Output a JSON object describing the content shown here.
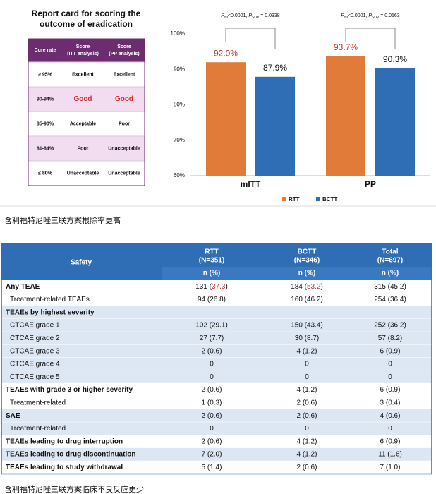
{
  "report_card": {
    "title": [
      "Report card for scoring the",
      "outcome of eradication"
    ],
    "headers": [
      [
        "Cure rate"
      ],
      [
        "Score",
        "(ITT analysis)"
      ],
      [
        "Score",
        "(PP analysis)"
      ]
    ],
    "rows": [
      [
        "≥ 95%",
        "Excellent",
        "Excellent"
      ],
      [
        "90-94%",
        "Good",
        "Good"
      ],
      [
        "85-90%",
        "Acceptable",
        "Poor"
      ],
      [
        "81-84%",
        "Poor",
        "Unacceptable"
      ],
      [
        "≤ 80%",
        "Unacceptable",
        "Unacceptable"
      ]
    ]
  },
  "chart_data": {
    "type": "bar",
    "categories": [
      "mITT",
      "PP"
    ],
    "series": [
      {
        "name": "RTT",
        "color": "#e07b39",
        "values": [
          92.0,
          93.7
        ],
        "value_labels": [
          "92.0%",
          "93.7%"
        ]
      },
      {
        "name": "BCTT",
        "color": "#2f6db5",
        "values": [
          87.9,
          90.3
        ],
        "value_labels": [
          "87.9%",
          "90.3%"
        ]
      }
    ],
    "ylim": [
      60,
      100
    ],
    "yticks": [
      {
        "value": 60,
        "label": "60%"
      },
      {
        "value": 70,
        "label": "70%"
      },
      {
        "value": 80,
        "label": "80%"
      },
      {
        "value": 90,
        "label": "90%"
      },
      {
        "value": 100,
        "label": "100%"
      }
    ],
    "annotations": [
      [
        "P",
        "NI",
        "<0.0001, ",
        "P",
        "SUP",
        " = 0.0338"
      ],
      [
        "P",
        "NI",
        "<0.0001, ",
        "P",
        "SUP",
        " = 0.0563"
      ]
    ],
    "legend": "bottom"
  },
  "caption_1": "含利福特尼唑三联方案根除率更高",
  "safety_table": {
    "headers": [
      [
        "Safety"
      ],
      [
        "RTT",
        "(N=351)",
        "n (%)"
      ],
      [
        "BCTT",
        "(N=346)",
        "n (%)"
      ],
      [
        "Total",
        "(N=697)",
        "n (%)"
      ]
    ],
    "rows": [
      [
        "Any TEAE",
        [
          "131 (",
          "37.3",
          ")"
        ],
        [
          "184 (",
          "53.2",
          ")"
        ],
        "315 (45.2)"
      ],
      [
        "Treatment-related TEAEs",
        "94 (26.8)",
        "160 (46.2)",
        "254 (36.4)"
      ],
      [
        "TEAEs by highest severity"
      ],
      [
        "CTCAE grade 1",
        "102 (29.1)",
        "150 (43.4)",
        "252 (36.2)"
      ],
      [
        "CTCAE grade 2",
        "27 (7.7)",
        "30 (8.7)",
        "57 (8.2)"
      ],
      [
        "CTCAE grade 3",
        "2 (0.6)",
        "4 (1.2)",
        "6 (0.9)"
      ],
      [
        "CTCAE grade 4",
        "0",
        "0",
        "0"
      ],
      [
        "CTCAE grade 5",
        "0",
        "0",
        "0"
      ],
      [
        "TEAEs with grade 3 or higher severity",
        "2 (0.6)",
        "4 (1.2)",
        "6 (0.9)"
      ],
      [
        "Treatment-related",
        "1 (0.3)",
        "2 (0.6)",
        "3 (0.4)"
      ],
      [
        "SAE",
        "2 (0.6)",
        "2 (0.6)",
        "4 (0.6)"
      ],
      [
        "Treatment-related",
        "0",
        "0",
        "0"
      ],
      [
        "TEAEs leading to drug interruption",
        "2 (0.6)",
        "4 (1.2)",
        "6 (0.9)"
      ],
      [
        "TEAEs leading to drug discontinuation",
        "7 (2.0)",
        "4 (1.2)",
        "11 (1.6)"
      ],
      [
        "TEAEs leading to study withdrawal",
        "5 (1.4)",
        "2 (0.6)",
        "7 (1.0)"
      ]
    ]
  },
  "caption_2": "含利福特尼唑三联方案临床不良反应更少"
}
